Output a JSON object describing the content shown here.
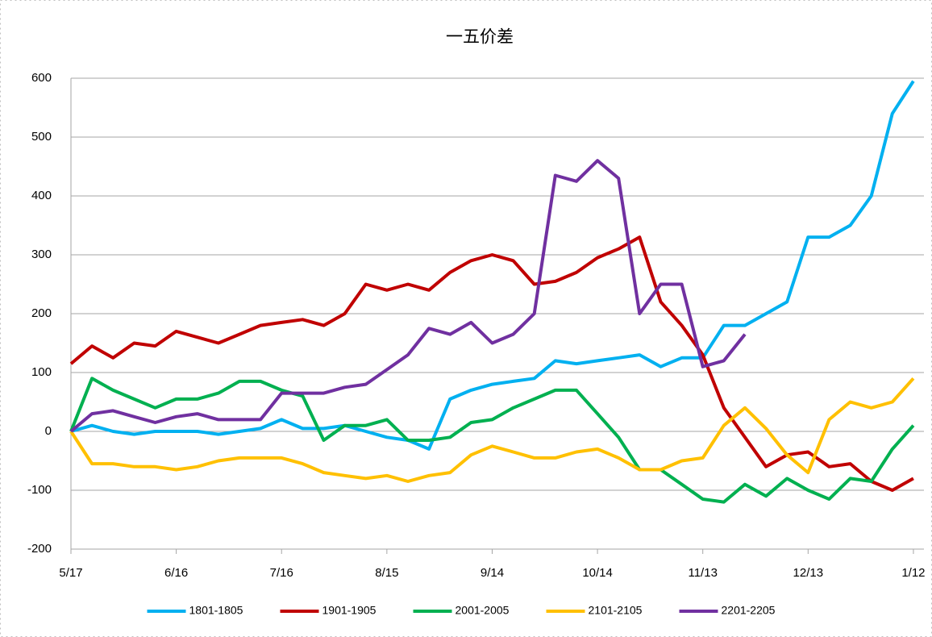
{
  "chart_data": {
    "type": "line",
    "title": "一五价差",
    "x": [
      "5/17",
      "5/23",
      "5/29",
      "6/4",
      "6/10",
      "6/16",
      "6/22",
      "6/28",
      "7/4",
      "7/10",
      "7/16",
      "7/22",
      "7/28",
      "8/3",
      "8/9",
      "8/15",
      "8/21",
      "8/27",
      "9/2",
      "9/8",
      "9/14",
      "9/20",
      "9/26",
      "10/2",
      "10/8",
      "10/14",
      "10/20",
      "10/26",
      "11/1",
      "11/7",
      "11/13",
      "11/19",
      "11/25",
      "12/1",
      "12/7",
      "12/13",
      "12/19",
      "12/25",
      "12/31",
      "1/6",
      "1/12"
    ],
    "series": [
      {
        "name": "1801-1805",
        "color": "#00b0f0",
        "values": [
          0,
          10,
          0,
          -5,
          0,
          0,
          0,
          -5,
          0,
          5,
          20,
          5,
          5,
          10,
          0,
          -10,
          -15,
          -30,
          55,
          70,
          80,
          85,
          90,
          120,
          115,
          120,
          125,
          130,
          110,
          125,
          125,
          180,
          180,
          200,
          220,
          330,
          330,
          350,
          400,
          540,
          595
        ]
      },
      {
        "name": "1901-1905",
        "color": "#c00000",
        "values": [
          115,
          145,
          125,
          150,
          145,
          170,
          160,
          150,
          165,
          180,
          185,
          190,
          180,
          200,
          250,
          240,
          250,
          240,
          270,
          290,
          300,
          290,
          250,
          255,
          270,
          295,
          310,
          330,
          220,
          180,
          130,
          40,
          -10,
          -60,
          -40,
          -35,
          -60,
          -55,
          -85,
          -100,
          -80
        ]
      },
      {
        "name": "2001-2005",
        "color": "#00b050",
        "values": [
          0,
          90,
          70,
          55,
          40,
          55,
          55,
          65,
          85,
          85,
          70,
          60,
          -15,
          10,
          10,
          20,
          -15,
          -15,
          -10,
          15,
          20,
          40,
          55,
          70,
          70,
          30,
          -10,
          -65,
          -65,
          -90,
          -115,
          -120,
          -90,
          -110,
          -80,
          -100,
          -115,
          -80,
          -85,
          -30,
          10
        ]
      },
      {
        "name": "2101-2105",
        "color": "#ffc000",
        "values": [
          0,
          -55,
          -55,
          -60,
          -60,
          -65,
          -60,
          -50,
          -45,
          -45,
          -45,
          -55,
          -70,
          -75,
          -80,
          -75,
          -85,
          -75,
          -70,
          -40,
          -25,
          -35,
          -45,
          -45,
          -35,
          -30,
          -45,
          -65,
          -65,
          -50,
          -45,
          10,
          40,
          5,
          -40,
          -70,
          20,
          50,
          40,
          50,
          90
        ]
      },
      {
        "name": "2201-2205",
        "color": "#7030a0",
        "values": [
          0,
          30,
          35,
          25,
          15,
          25,
          30,
          20,
          20,
          20,
          65,
          65,
          65,
          75,
          80,
          105,
          130,
          175,
          165,
          185,
          150,
          165,
          200,
          435,
          425,
          460,
          430,
          200,
          250,
          250,
          110,
          120,
          165,
          null,
          null,
          null,
          null,
          null,
          null,
          null,
          null
        ]
      }
    ],
    "xlim": [
      "5/17",
      "1/15"
    ],
    "xticks": [
      "5/17",
      "6/16",
      "7/16",
      "8/15",
      "9/14",
      "10/14",
      "11/13",
      "12/13",
      "1/12"
    ],
    "ylim": [
      -200,
      600
    ],
    "yticks": [
      -200,
      -100,
      0,
      100,
      200,
      300,
      400,
      500,
      600
    ],
    "grid": true,
    "negative_tick_color": "#ff0000",
    "legend": "bottom"
  }
}
